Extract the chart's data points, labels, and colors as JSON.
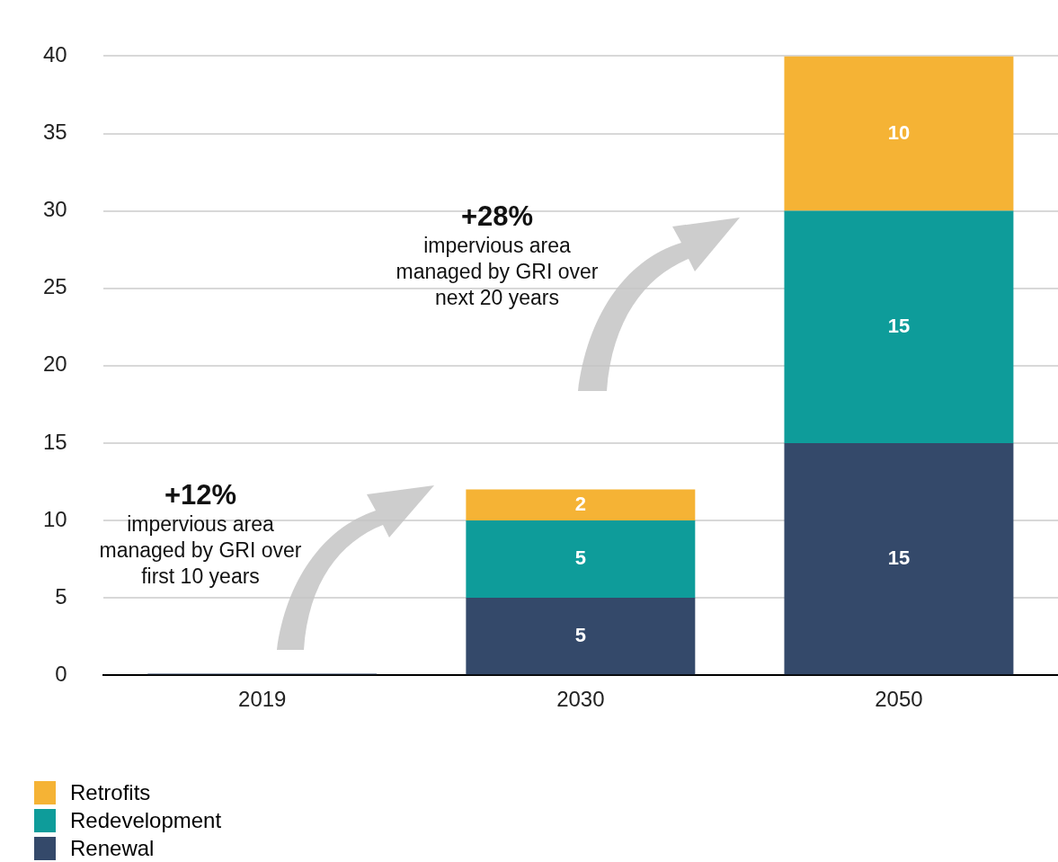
{
  "chart_data": {
    "type": "bar",
    "stacked": true,
    "categories": [
      "2019",
      "2030",
      "2050"
    ],
    "series": [
      {
        "name": "Renewal",
        "color": "#34496a",
        "values": [
          0.1,
          5,
          15
        ],
        "value_labels": [
          null,
          "5",
          "15"
        ]
      },
      {
        "name": "Redevelopment",
        "color": "#0e9c9a",
        "values": [
          null,
          5,
          15
        ],
        "value_labels": [
          null,
          "5",
          "15"
        ]
      },
      {
        "name": "Retrofits",
        "color": "#f5b335",
        "values": [
          null,
          2,
          10
        ],
        "value_labels": [
          null,
          "2",
          "10"
        ]
      }
    ],
    "ylim": [
      0,
      40
    ],
    "yticks": [
      0,
      5,
      10,
      15,
      20,
      25,
      30,
      35,
      40
    ],
    "grid": "y",
    "legend": "bottom left",
    "annotations": [
      "+12%",
      "impervious area managed by GRI over first 10 years",
      "+28%",
      "impervious area managed by GRI over next 20 years"
    ]
  }
}
